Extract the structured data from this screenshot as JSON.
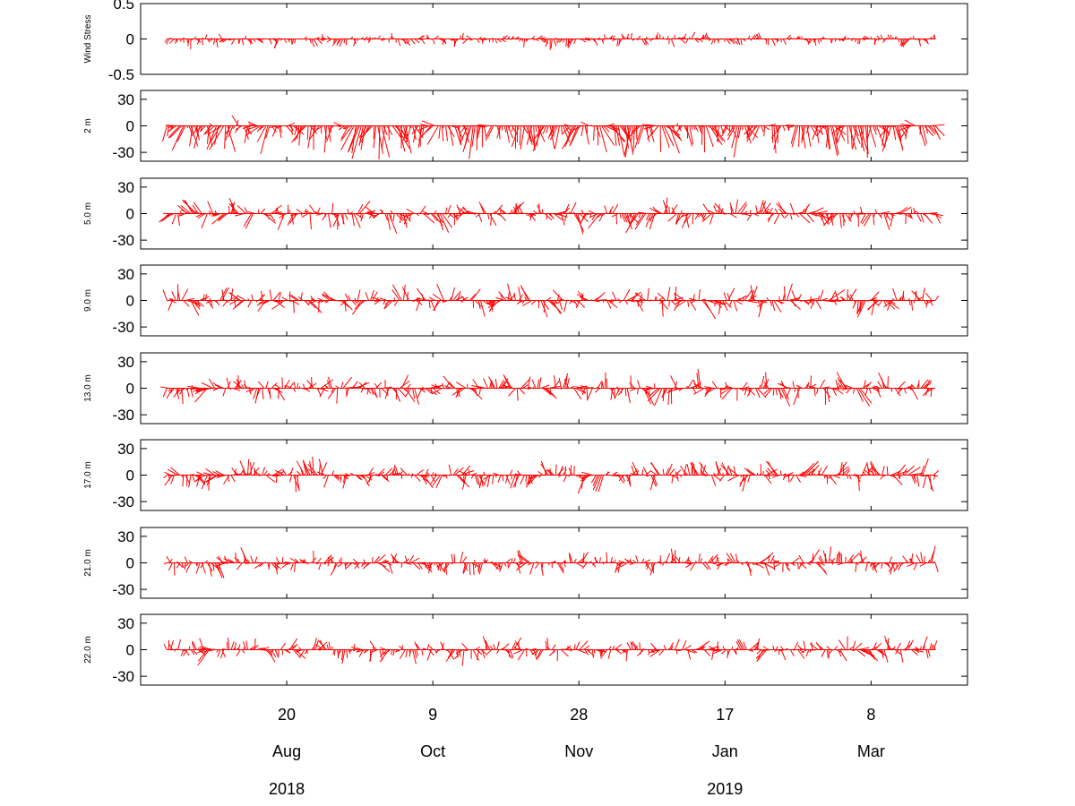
{
  "chart_data": {
    "type": "stick",
    "color": "#ff0000",
    "x_range": [
      "2018-07-01",
      "2019-04-10"
    ],
    "data_range": [
      "2018-07-10",
      "2019-03-30"
    ],
    "x_ticks": [
      {
        "date": "2018-08-20",
        "day": "20",
        "month": "Aug"
      },
      {
        "date": "2018-10-09",
        "day": "9",
        "month": "Oct"
      },
      {
        "date": "2018-11-28",
        "day": "28",
        "month": "Nov"
      },
      {
        "date": "2019-01-17",
        "day": "17",
        "month": "Jan"
      },
      {
        "date": "2019-03-08",
        "day": "8",
        "month": "Mar"
      }
    ],
    "year_labels": [
      {
        "date": "2018-08-20",
        "text": "2018"
      },
      {
        "date": "2019-01-17",
        "text": "2019"
      }
    ],
    "panels": [
      {
        "label": "Wind Stress",
        "ylim": [
          -0.5,
          0.5
        ],
        "yticks": [
          "0.5",
          "0",
          "-0.5"
        ],
        "yvalues": [
          0.5,
          0,
          -0.5
        ],
        "amp": 0.12,
        "bias": -0.02,
        "seed": 11
      },
      {
        "label": "2 m",
        "ylim": [
          -40,
          40
        ],
        "yticks": [
          "30",
          "0",
          "-30"
        ],
        "yvalues": [
          30,
          0,
          -30
        ],
        "amp": 22,
        "bias": -14,
        "seed": 23
      },
      {
        "label": "5.0 m",
        "ylim": [
          -40,
          40
        ],
        "yticks": [
          "30",
          "0",
          "-30"
        ],
        "yvalues": [
          30,
          0,
          -30
        ],
        "amp": 20,
        "bias": -3,
        "seed": 37
      },
      {
        "label": "9.0 m",
        "ylim": [
          -40,
          40
        ],
        "yticks": [
          "30",
          "0",
          "-30"
        ],
        "yvalues": [
          30,
          0,
          -30
        ],
        "amp": 20,
        "bias": 0,
        "seed": 41
      },
      {
        "label": "13.0 m",
        "ylim": [
          -40,
          40
        ],
        "yticks": [
          "30",
          "0",
          "-30"
        ],
        "yvalues": [
          30,
          0,
          -30
        ],
        "amp": 20,
        "bias": 0,
        "seed": 53
      },
      {
        "label": "17.0 m",
        "ylim": [
          -40,
          40
        ],
        "yticks": [
          "30",
          "0",
          "-30"
        ],
        "yvalues": [
          30,
          0,
          -30
        ],
        "amp": 19,
        "bias": 0,
        "seed": 67
      },
      {
        "label": "21.0 m",
        "ylim": [
          -40,
          40
        ],
        "yticks": [
          "30",
          "0",
          "-30"
        ],
        "yvalues": [
          30,
          0,
          -30
        ],
        "amp": 17,
        "bias": 0,
        "seed": 79
      },
      {
        "label": "22.0 m",
        "ylim": [
          -40,
          40
        ],
        "yticks": [
          "30",
          "0",
          "-30"
        ],
        "yvalues": [
          30,
          0,
          -30
        ],
        "amp": 17,
        "bias": 0,
        "seed": 83
      }
    ]
  }
}
